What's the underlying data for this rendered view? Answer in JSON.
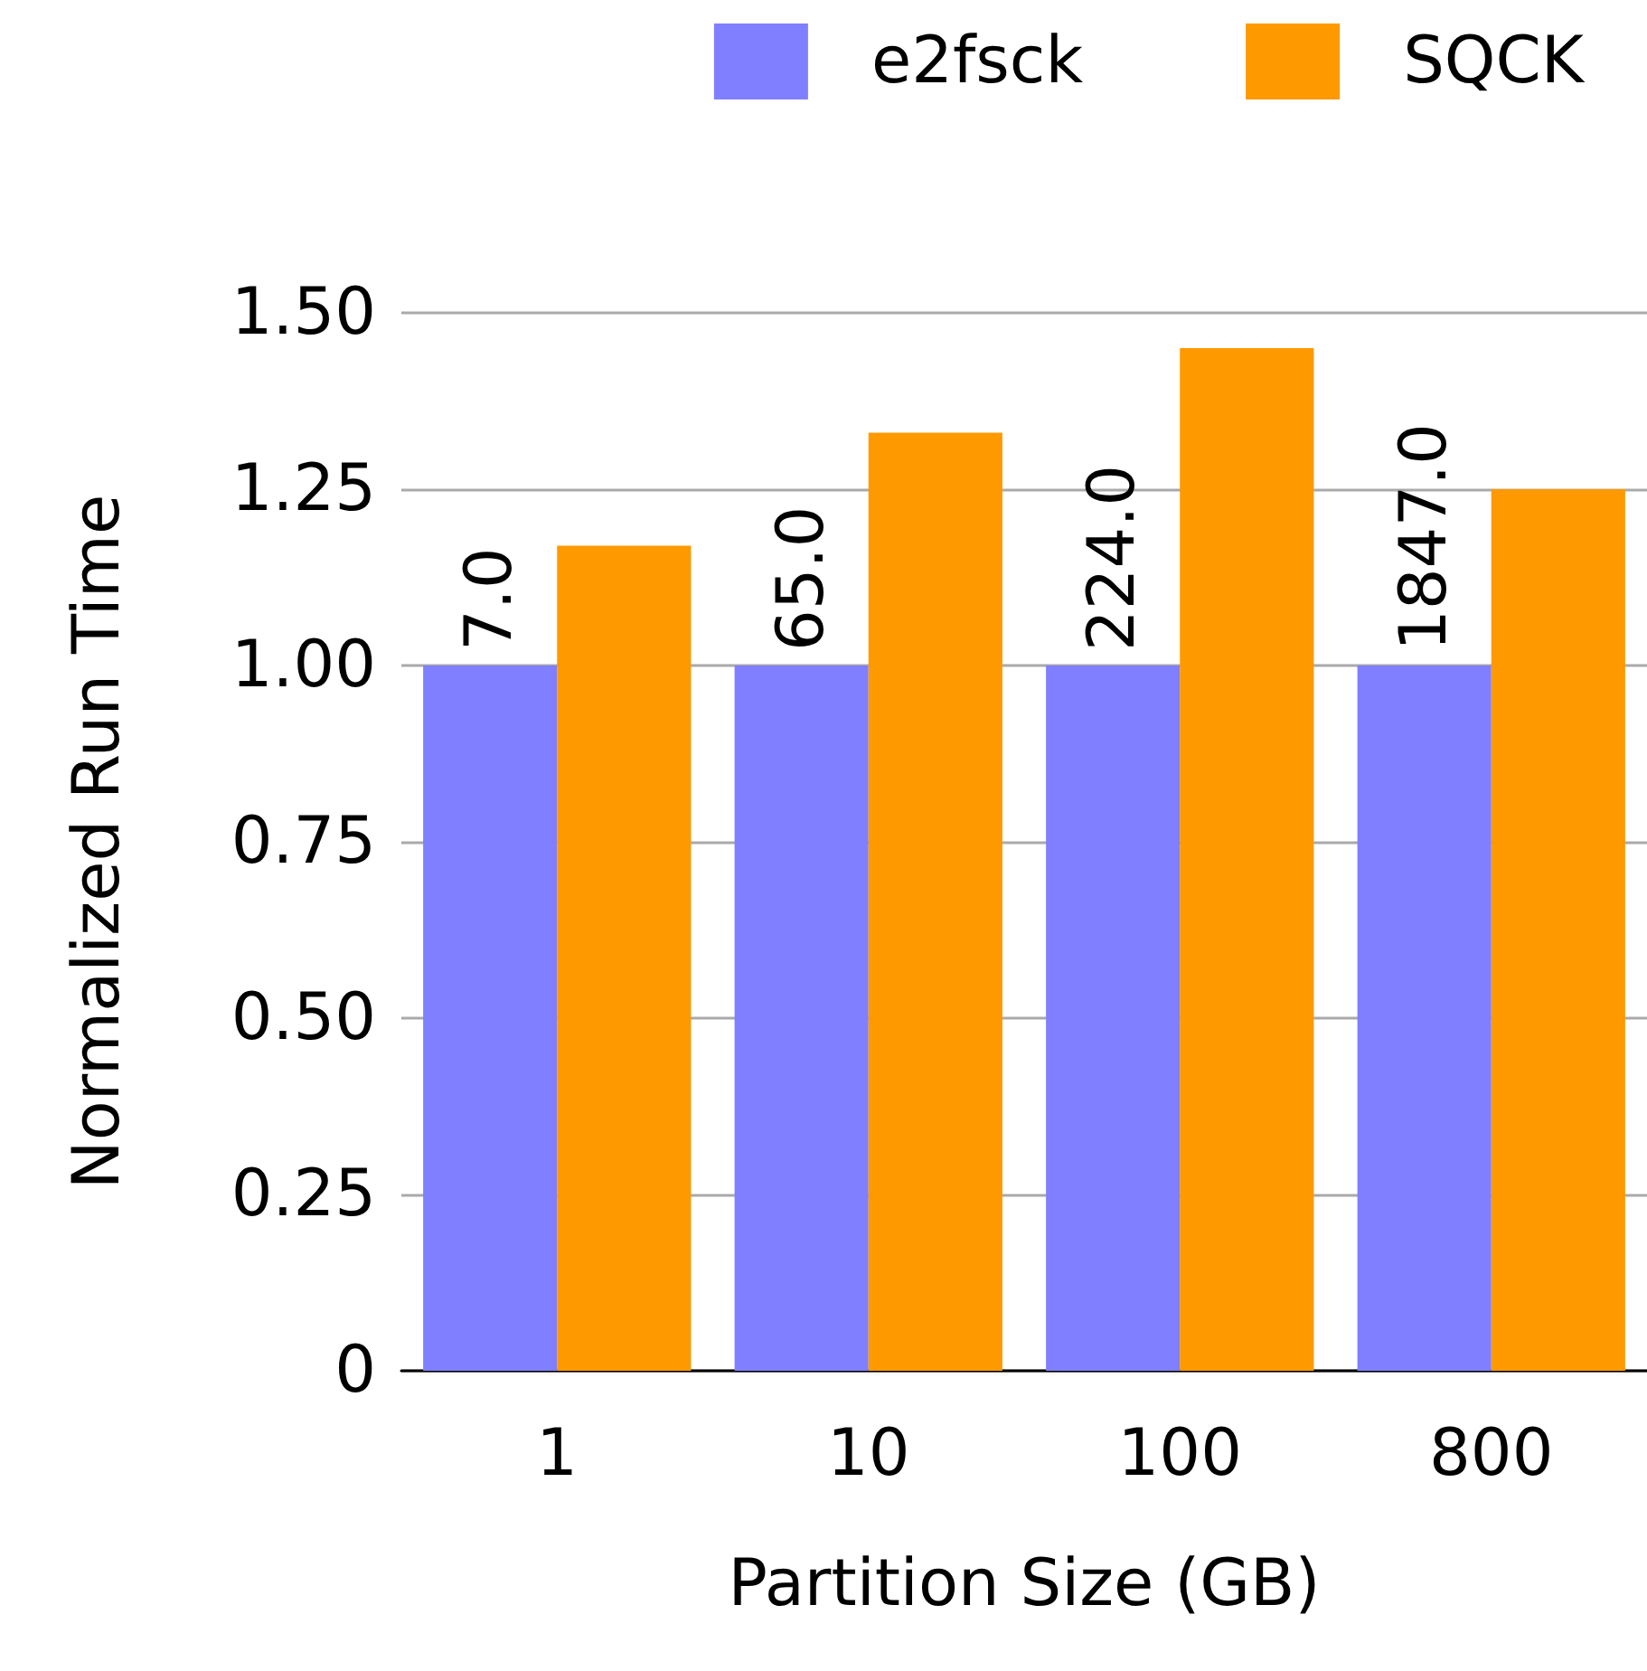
{
  "chart_data": {
    "type": "bar",
    "xlabel": "Partition Size (GB)",
    "ylabel": "Normalized Run Time",
    "categories": [
      "1",
      "10",
      "100",
      "800"
    ],
    "series": [
      {
        "name": "e2fsck",
        "color": "#7f7fff",
        "values": [
          1.0,
          1.0,
          1.0,
          1.0
        ]
      },
      {
        "name": "SQCK",
        "color": "#ff9900",
        "values": [
          1.17,
          1.33,
          1.45,
          1.25
        ]
      }
    ],
    "ylim": [
      0,
      1.5
    ],
    "yticks": [
      0,
      {
        "value": 0.25,
        "label": "0.25"
      },
      {
        "value": 0.5,
        "label": "0.50"
      },
      {
        "value": 0.75,
        "label": "0.75"
      },
      {
        "value": 1,
        "label": "1.00"
      },
      {
        "value": 1.25,
        "label": "1.25"
      },
      {
        "value": 1.5,
        "label": "1.50"
      }
    ],
    "annotations": [
      {
        "text": "7.0",
        "x": "1",
        "y": 1.0
      },
      {
        "text": "65.0",
        "x": "10",
        "y": 1.0
      },
      {
        "text": "224.0",
        "x": "100",
        "y": 1.0
      },
      {
        "text": "1847.0",
        "x": "800",
        "y": 1.0
      }
    ],
    "grid": "y",
    "legend": "top right"
  }
}
